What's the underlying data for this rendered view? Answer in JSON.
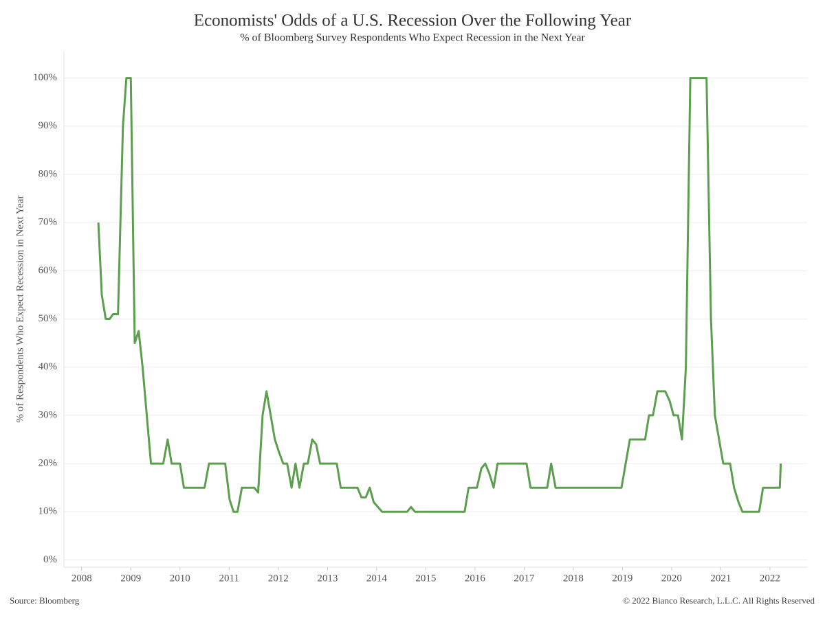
{
  "chart_data": {
    "type": "line",
    "title": "Economists' Odds of a U.S. Recession Over the Following Year",
    "subtitle": "% of Bloomberg Survey Respondents Who Expect Recession in the Next Year",
    "y_label": "% of Respondents Who Expect Recession in Next Year",
    "source": "Source: Bloomberg",
    "copyright": "© 2022 Bianco Research, L.L.C. All Rights Reserved",
    "xlim": [
      2007.64,
      2022.77
    ],
    "xticks": [
      2008,
      2009,
      2010,
      2011,
      2012,
      2013,
      2014,
      2015,
      2016,
      2017,
      2018,
      2019,
      2020,
      2021,
      2022
    ],
    "ylim": [
      -1.5,
      105.5
    ],
    "yticks": [
      {
        "value": 0,
        "label": "0%"
      },
      {
        "value": 10,
        "label": "10%"
      },
      {
        "value": 20,
        "label": "20%"
      },
      {
        "value": 30,
        "label": "30%"
      },
      {
        "value": 40,
        "label": "40%"
      },
      {
        "value": 50,
        "label": "50%"
      },
      {
        "value": 60,
        "label": "60%"
      },
      {
        "value": 70,
        "label": "70%"
      },
      {
        "value": 80,
        "label": "80%"
      },
      {
        "value": 90,
        "label": "90%"
      },
      {
        "value": 100,
        "label": "100%"
      }
    ],
    "grid": true,
    "x": [
      2008.34,
      2008.41,
      2008.49,
      2008.57,
      2008.64,
      2008.74,
      2008.84,
      2008.91,
      2009.0,
      2009.08,
      2009.16,
      2009.24,
      2009.41,
      2009.66,
      2009.75,
      2009.83,
      2010.0,
      2010.08,
      2010.5,
      2010.59,
      2010.92,
      2011.01,
      2011.09,
      2011.17,
      2011.26,
      2011.51,
      2011.59,
      2011.68,
      2011.76,
      2011.93,
      2012.01,
      2012.1,
      2012.18,
      2012.27,
      2012.35,
      2012.43,
      2012.52,
      2012.6,
      2012.69,
      2012.77,
      2012.85,
      2013.19,
      2013.27,
      2013.61,
      2013.69,
      2013.78,
      2013.86,
      2013.94,
      2014.11,
      2014.62,
      2014.7,
      2014.78,
      2015.79,
      2015.87,
      2016.04,
      2016.13,
      2016.21,
      2016.29,
      2016.38,
      2016.46,
      2017.05,
      2017.13,
      2017.47,
      2017.55,
      2017.64,
      2018.98,
      2019.15,
      2019.46,
      2019.54,
      2019.62,
      2019.71,
      2019.87,
      2019.96,
      2020.04,
      2020.13,
      2020.21,
      2020.29,
      2020.38,
      2020.71,
      2020.8,
      2020.88,
      2021.05,
      2021.19,
      2021.27,
      2021.36,
      2021.44,
      2021.78,
      2021.86,
      2022.2,
      2022.22
    ],
    "series": [
      {
        "name": "Recession odds",
        "color": "#5b9e4d",
        "values": [
          70,
          55,
          50,
          50,
          51,
          51,
          90,
          100,
          100,
          45,
          47.5,
          40,
          20,
          20,
          25,
          20,
          20,
          15,
          15,
          20,
          20,
          12.5,
          10,
          10,
          15,
          15,
          14,
          30,
          35,
          25,
          22.5,
          20,
          20,
          15,
          20,
          15,
          20,
          20,
          25,
          24,
          20,
          20,
          15,
          15,
          13,
          13,
          15,
          12,
          10,
          10,
          11,
          10,
          10,
          15,
          15,
          19,
          20,
          18,
          15,
          20,
          20,
          15,
          15,
          20,
          15,
          15,
          25,
          25,
          30,
          30,
          35,
          35,
          33,
          30,
          30,
          25,
          40,
          100,
          100,
          50,
          30,
          20,
          20,
          15,
          12,
          10,
          10,
          15,
          15,
          20
        ]
      }
    ]
  }
}
